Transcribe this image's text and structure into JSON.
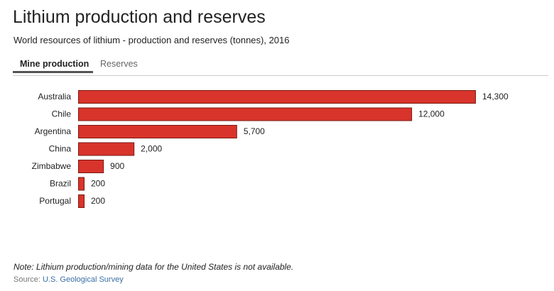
{
  "title": "Lithium production and reserves",
  "subtitle": "World resources of lithium - production and reserves (tonnes), 2016",
  "tabs": [
    {
      "label": "Mine production",
      "active": true
    },
    {
      "label": "Reserves",
      "active": false
    }
  ],
  "chart_data": {
    "type": "bar",
    "orientation": "horizontal",
    "title": "Mine production",
    "categories": [
      "Australia",
      "Chile",
      "Argentina",
      "China",
      "Zimbabwe",
      "Brazil",
      "Portugal"
    ],
    "values": [
      14300,
      12000,
      5700,
      2000,
      900,
      200,
      200
    ],
    "value_labels": [
      "14,300",
      "12,000",
      "5,700",
      "2,000",
      "900",
      "200",
      "200"
    ],
    "xlim": [
      0,
      14300
    ],
    "bar_color": "#d9342b"
  },
  "note": "Note: Lithium production/mining data for the United States is not available.",
  "source": {
    "label": "Source:",
    "link": "U.S. Geological Survey"
  }
}
